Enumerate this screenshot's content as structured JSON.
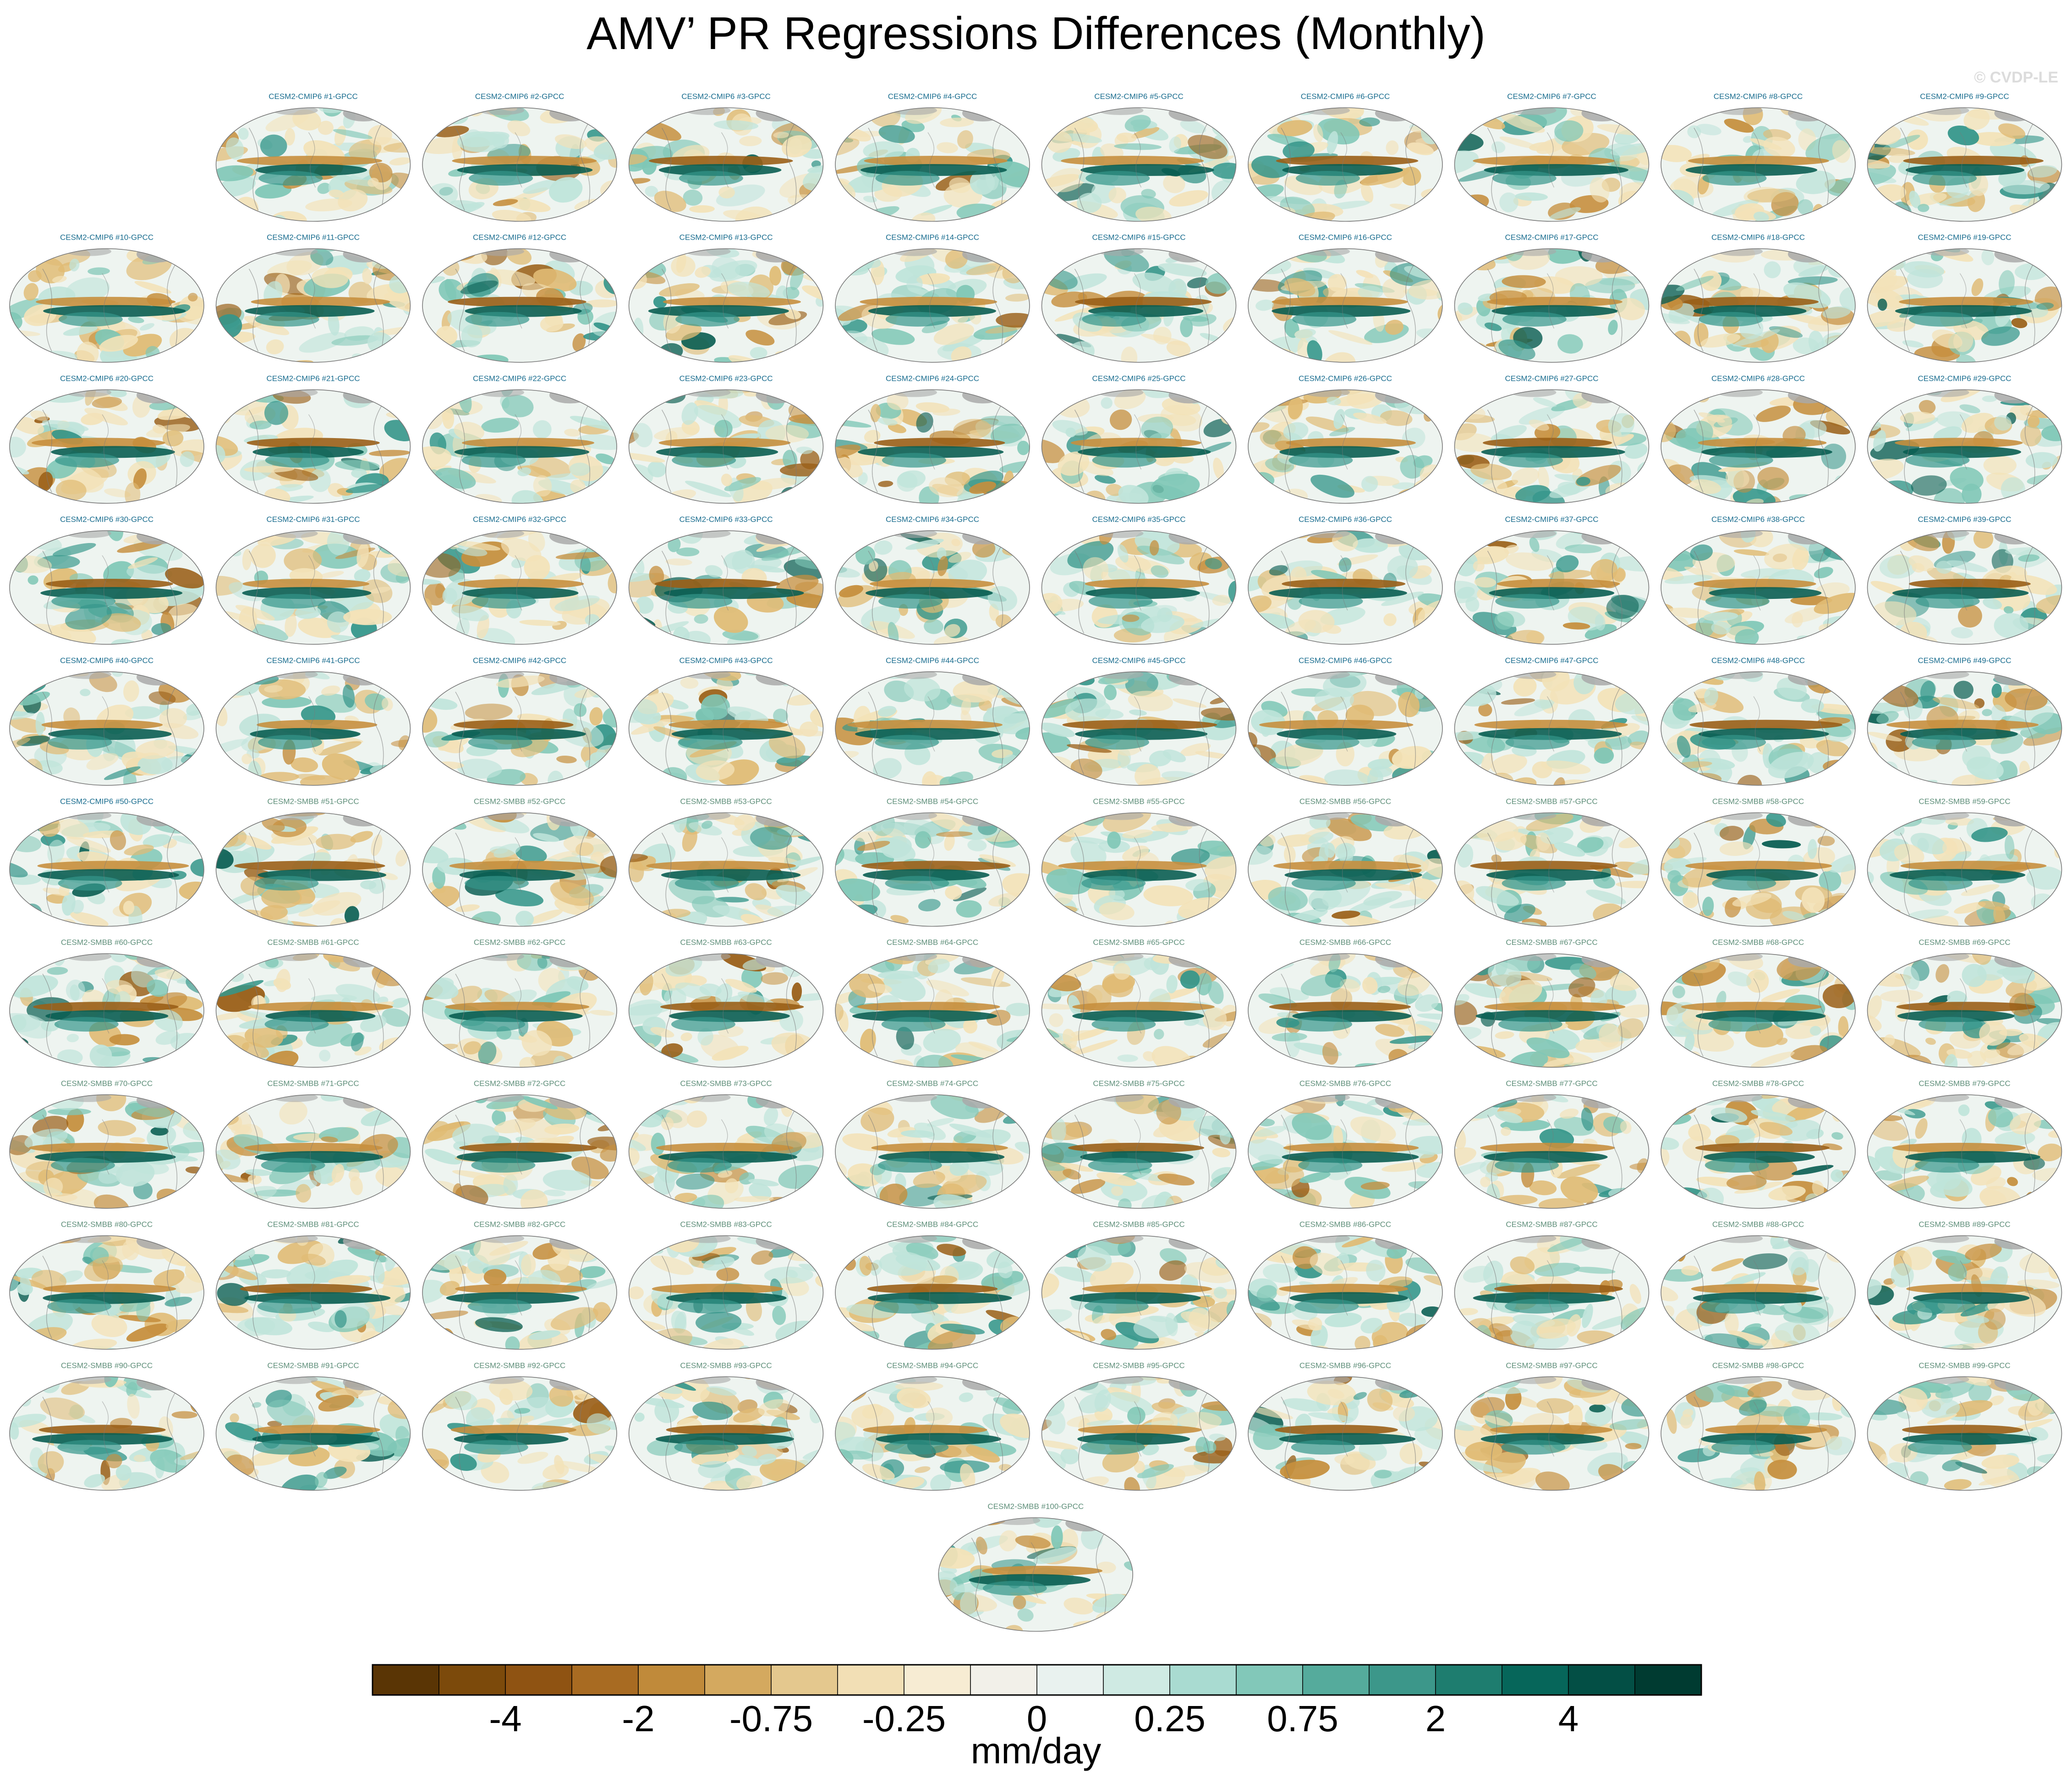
{
  "title": "AMV’ PR Regressions Differences (Monthly)",
  "watermark": "© CVDP-LE",
  "panel_label_colors": {
    "CESM2-CMIP6": "#1a6d8f",
    "CESM2-SMBB": "#5f8f7a"
  },
  "panels": [
    "CESM2-CMIP6 #1-GPCC",
    "CESM2-CMIP6 #2-GPCC",
    "CESM2-CMIP6 #3-GPCC",
    "CESM2-CMIP6 #4-GPCC",
    "CESM2-CMIP6 #5-GPCC",
    "CESM2-CMIP6 #6-GPCC",
    "CESM2-CMIP6 #7-GPCC",
    "CESM2-CMIP6 #8-GPCC",
    "CESM2-CMIP6 #9-GPCC",
    "CESM2-CMIP6 #10-GPCC",
    "CESM2-CMIP6 #11-GPCC",
    "CESM2-CMIP6 #12-GPCC",
    "CESM2-CMIP6 #13-GPCC",
    "CESM2-CMIP6 #14-GPCC",
    "CESM2-CMIP6 #15-GPCC",
    "CESM2-CMIP6 #16-GPCC",
    "CESM2-CMIP6 #17-GPCC",
    "CESM2-CMIP6 #18-GPCC",
    "CESM2-CMIP6 #19-GPCC",
    "CESM2-CMIP6 #20-GPCC",
    "CESM2-CMIP6 #21-GPCC",
    "CESM2-CMIP6 #22-GPCC",
    "CESM2-CMIP6 #23-GPCC",
    "CESM2-CMIP6 #24-GPCC",
    "CESM2-CMIP6 #25-GPCC",
    "CESM2-CMIP6 #26-GPCC",
    "CESM2-CMIP6 #27-GPCC",
    "CESM2-CMIP6 #28-GPCC",
    "CESM2-CMIP6 #29-GPCC",
    "CESM2-CMIP6 #30-GPCC",
    "CESM2-CMIP6 #31-GPCC",
    "CESM2-CMIP6 #32-GPCC",
    "CESM2-CMIP6 #33-GPCC",
    "CESM2-CMIP6 #34-GPCC",
    "CESM2-CMIP6 #35-GPCC",
    "CESM2-CMIP6 #36-GPCC",
    "CESM2-CMIP6 #37-GPCC",
    "CESM2-CMIP6 #38-GPCC",
    "CESM2-CMIP6 #39-GPCC",
    "CESM2-CMIP6 #40-GPCC",
    "CESM2-CMIP6 #41-GPCC",
    "CESM2-CMIP6 #42-GPCC",
    "CESM2-CMIP6 #43-GPCC",
    "CESM2-CMIP6 #44-GPCC",
    "CESM2-CMIP6 #45-GPCC",
    "CESM2-CMIP6 #46-GPCC",
    "CESM2-CMIP6 #47-GPCC",
    "CESM2-CMIP6 #48-GPCC",
    "CESM2-CMIP6 #49-GPCC",
    "CESM2-CMIP6 #50-GPCC",
    "CESM2-SMBB #51-GPCC",
    "CESM2-SMBB #52-GPCC",
    "CESM2-SMBB #53-GPCC",
    "CESM2-SMBB #54-GPCC",
    "CESM2-SMBB #55-GPCC",
    "CESM2-SMBB #56-GPCC",
    "CESM2-SMBB #57-GPCC",
    "CESM2-SMBB #58-GPCC",
    "CESM2-SMBB #59-GPCC",
    "CESM2-SMBB #60-GPCC",
    "CESM2-SMBB #61-GPCC",
    "CESM2-SMBB #62-GPCC",
    "CESM2-SMBB #63-GPCC",
    "CESM2-SMBB #64-GPCC",
    "CESM2-SMBB #65-GPCC",
    "CESM2-SMBB #66-GPCC",
    "CESM2-SMBB #67-GPCC",
    "CESM2-SMBB #68-GPCC",
    "CESM2-SMBB #69-GPCC",
    "CESM2-SMBB #70-GPCC",
    "CESM2-SMBB #71-GPCC",
    "CESM2-SMBB #72-GPCC",
    "CESM2-SMBB #73-GPCC",
    "CESM2-SMBB #74-GPCC",
    "CESM2-SMBB #75-GPCC",
    "CESM2-SMBB #76-GPCC",
    "CESM2-SMBB #77-GPCC",
    "CESM2-SMBB #78-GPCC",
    "CESM2-SMBB #79-GPCC",
    "CESM2-SMBB #80-GPCC",
    "CESM2-SMBB #81-GPCC",
    "CESM2-SMBB #82-GPCC",
    "CESM2-SMBB #83-GPCC",
    "CESM2-SMBB #84-GPCC",
    "CESM2-SMBB #85-GPCC",
    "CESM2-SMBB #86-GPCC",
    "CESM2-SMBB #87-GPCC",
    "CESM2-SMBB #88-GPCC",
    "CESM2-SMBB #89-GPCC",
    "CESM2-SMBB #90-GPCC",
    "CESM2-SMBB #91-GPCC",
    "CESM2-SMBB #92-GPCC",
    "CESM2-SMBB #93-GPCC",
    "CESM2-SMBB #94-GPCC",
    "CESM2-SMBB #95-GPCC",
    "CESM2-SMBB #96-GPCC",
    "CESM2-SMBB #97-GPCC",
    "CESM2-SMBB #98-GPCC",
    "CESM2-SMBB #99-GPCC",
    "CESM2-SMBB #100-GPCC"
  ],
  "map_colors": {
    "ocean_base": "#eef4f0",
    "dry": [
      "#f3e2b8",
      "#e0bb74",
      "#c68f3e",
      "#9a5f17"
    ],
    "wet": [
      "#bfe4da",
      "#7fc7b6",
      "#35968a",
      "#0a5e52"
    ],
    "land_grey": "#a9a9a9",
    "outline": "#7a7a7a"
  },
  "colorbar": {
    "colors": [
      "#5a3505",
      "#7c4a0b",
      "#8f5312",
      "#a86b22",
      "#c08a3a",
      "#d4a95f",
      "#e4c88e",
      "#f2dfb5",
      "#f7ecd3",
      "#f2f0e9",
      "#e9f2ef",
      "#cfeae3",
      "#a9dbd1",
      "#82c8b9",
      "#55ab9c",
      "#3c978a",
      "#1e7d6f",
      "#06665a",
      "#034f45",
      "#003b31"
    ],
    "tick_labels": [
      "-4",
      "-2",
      "-0.75",
      "-0.25",
      "0",
      "0.25",
      "0.75",
      "2",
      "4"
    ],
    "label": "mm/day"
  }
}
